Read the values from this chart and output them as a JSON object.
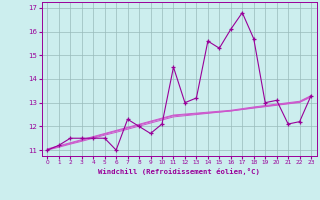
{
  "x_data": [
    0,
    1,
    2,
    3,
    4,
    5,
    6,
    7,
    8,
    9,
    10,
    11,
    12,
    13,
    14,
    15,
    16,
    17,
    18,
    19,
    20,
    21,
    22,
    23
  ],
  "y_main": [
    11.0,
    11.2,
    11.5,
    11.5,
    11.5,
    11.5,
    11.0,
    12.3,
    12.0,
    11.7,
    12.1,
    14.5,
    13.0,
    13.2,
    15.6,
    15.3,
    16.1,
    16.8,
    15.7,
    13.0,
    13.1,
    12.1,
    12.2,
    13.3
  ],
  "y_line1": [
    11.05,
    11.18,
    11.31,
    11.44,
    11.57,
    11.7,
    11.83,
    11.96,
    12.09,
    12.22,
    12.35,
    12.48,
    12.52,
    12.56,
    12.6,
    12.64,
    12.68,
    12.75,
    12.82,
    12.88,
    12.94,
    13.0,
    13.06,
    13.3
  ],
  "y_line2": [
    11.02,
    11.15,
    11.28,
    11.41,
    11.54,
    11.67,
    11.8,
    11.93,
    12.06,
    12.19,
    12.32,
    12.45,
    12.49,
    12.53,
    12.57,
    12.61,
    12.65,
    12.72,
    12.79,
    12.85,
    12.91,
    12.97,
    13.03,
    13.27
  ],
  "y_line3": [
    11.0,
    11.12,
    11.25,
    11.37,
    11.5,
    11.63,
    11.75,
    11.88,
    12.01,
    12.14,
    12.27,
    12.4,
    12.45,
    12.5,
    12.55,
    12.6,
    12.65,
    12.71,
    12.77,
    12.83,
    12.89,
    12.95,
    13.01,
    13.24
  ],
  "color_main": "#990099",
  "color_lines": "#cc55cc",
  "bg_color": "#cceeee",
  "grid_color": "#99bbbb",
  "ylim": [
    10.75,
    17.25
  ],
  "xlim": [
    -0.5,
    23.5
  ],
  "xlabel": "Windchill (Refroidissement éolien,°C)",
  "yticks": [
    11,
    12,
    13,
    14,
    15,
    16,
    17
  ],
  "xticks": [
    0,
    1,
    2,
    3,
    4,
    5,
    6,
    7,
    8,
    9,
    10,
    11,
    12,
    13,
    14,
    15,
    16,
    17,
    18,
    19,
    20,
    21,
    22,
    23
  ]
}
